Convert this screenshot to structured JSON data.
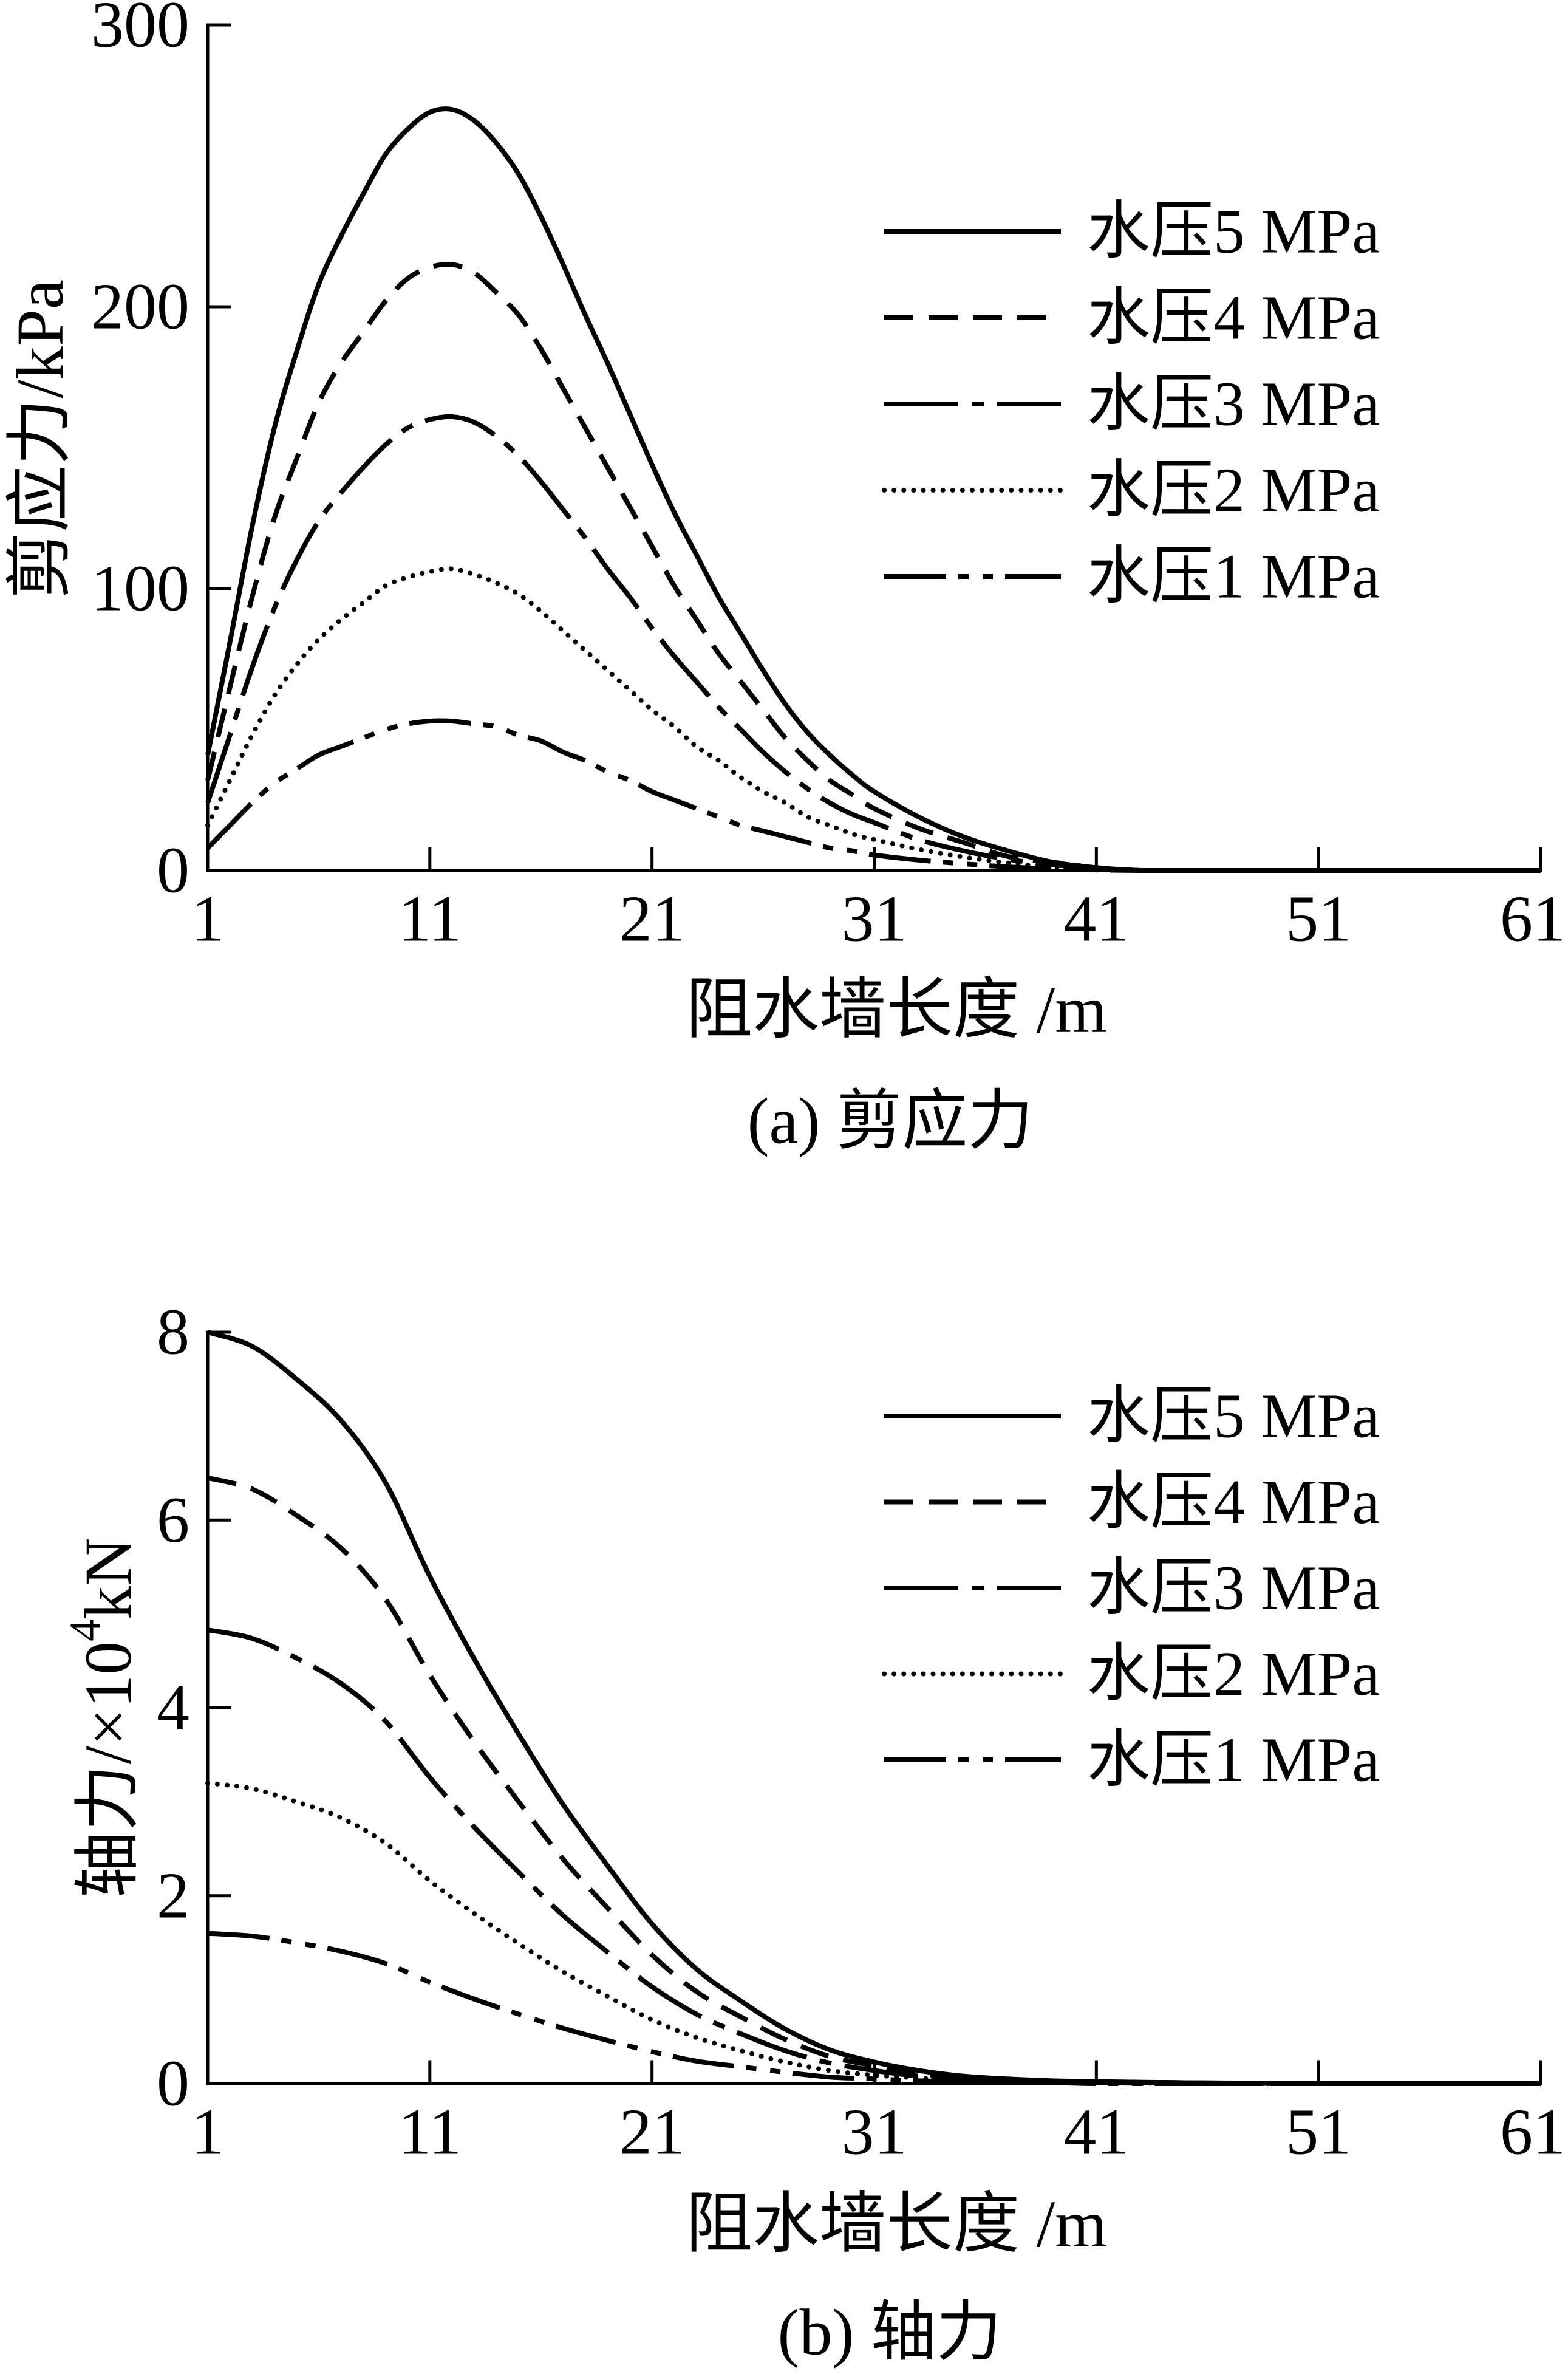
{
  "chart_data": [
    {
      "type": "line",
      "title": "(a) 剪应力",
      "xlabel": "阻水墙长度 /m",
      "ylabel": "剪应力/kPa",
      "xlim": [
        1,
        61
      ],
      "ylim": [
        0,
        300
      ],
      "x_ticks": [
        1,
        11,
        21,
        31,
        41,
        51,
        61
      ],
      "y_ticks": [
        0,
        100,
        200,
        300
      ],
      "grid": false,
      "legend": "top-right",
      "line_color": "#000000",
      "x": [
        1,
        2,
        3,
        4,
        5,
        6,
        7,
        8,
        9,
        10,
        11,
        12,
        13,
        14,
        15,
        16,
        17,
        18,
        19,
        20,
        21,
        22,
        23,
        24,
        25,
        26,
        27,
        28,
        29,
        30,
        31,
        33,
        35,
        37,
        39,
        41,
        43,
        45,
        51,
        61
      ],
      "series": [
        {
          "name": "水压5 MPa",
          "style": "solid",
          "values": [
            41,
            81,
            122,
            157,
            184,
            208,
            225,
            240,
            254,
            263,
            269,
            270,
            266,
            258,
            247,
            232,
            215,
            197,
            180,
            162,
            144,
            127,
            112,
            97,
            84,
            71,
            59,
            49,
            41,
            34,
            28,
            19,
            12,
            7,
            3,
            1,
            0,
            0,
            0,
            0
          ]
        },
        {
          "name": "水压4 MPa",
          "style": "dashed",
          "values": [
            32,
            65,
            97,
            125,
            146,
            166,
            180,
            191,
            202,
            210,
            214,
            215,
            212,
            205,
            197,
            185,
            171,
            157,
            143,
            129,
            115,
            101,
            89,
            77,
            67,
            57,
            47,
            39,
            32,
            27,
            22,
            15,
            10,
            5,
            3,
            1,
            0,
            0,
            0,
            0
          ]
        },
        {
          "name": "水压3 MPa",
          "style": "dashdot",
          "values": [
            24,
            48,
            72,
            93,
            110,
            124,
            134,
            143,
            151,
            157,
            160,
            161,
            159,
            154,
            147,
            138,
            128,
            118,
            107,
            97,
            86,
            76,
            67,
            58,
            50,
            42,
            35,
            29,
            24,
            20,
            17,
            11,
            7,
            4,
            2,
            1,
            0,
            0,
            0,
            0
          ]
        },
        {
          "name": "水压2 MPa",
          "style": "dotted",
          "values": [
            16,
            32,
            48,
            62,
            73,
            82,
            89,
            95,
            101,
            104,
            106,
            107,
            105,
            102,
            98,
            92,
            85,
            78,
            71,
            64,
            57,
            51,
            44,
            39,
            33,
            28,
            24,
            19,
            16,
            13,
            11,
            7.5,
            4.8,
            2.7,
            1.3,
            0.4,
            0,
            0,
            0,
            0
          ]
        },
        {
          "name": "水压1 MPa",
          "style": "dashdotdot",
          "values": [
            8,
            16,
            24,
            31,
            36,
            41,
            44,
            47,
            50,
            52,
            53,
            53,
            52,
            51,
            48,
            46,
            42,
            39,
            35,
            32,
            28,
            25,
            22,
            19,
            16,
            14,
            12,
            10,
            8,
            7,
            5.5,
            3.7,
            2.4,
            1.3,
            0.6,
            0.2,
            0,
            0,
            0,
            0
          ]
        }
      ]
    },
    {
      "type": "line",
      "title": "(b) 轴力",
      "xlabel": "阻水墙长度 /m",
      "ylabel": "轴力/×10⁴kN",
      "xlim": [
        1,
        61
      ],
      "ylim": [
        0,
        8
      ],
      "x_ticks": [
        1,
        11,
        21,
        31,
        41,
        51,
        61
      ],
      "y_ticks": [
        0,
        2,
        4,
        6,
        8
      ],
      "grid": false,
      "legend": "top-right",
      "line_color": "#000000",
      "x": [
        1,
        3,
        5,
        7,
        9,
        11,
        13,
        15,
        17,
        19,
        21,
        23,
        25,
        27,
        29,
        31,
        33,
        35,
        37,
        39,
        41,
        45,
        51,
        61
      ],
      "series": [
        {
          "name": "水压5 MPa",
          "style": "solid",
          "values": [
            8.0,
            7.85,
            7.5,
            7.06,
            6.4,
            5.4,
            4.52,
            3.72,
            2.97,
            2.32,
            1.7,
            1.22,
            0.88,
            0.58,
            0.36,
            0.23,
            0.14,
            0.08,
            0.05,
            0.03,
            0.02,
            0.01,
            0,
            0
          ]
        },
        {
          "name": "水压4 MPa",
          "style": "dashed",
          "values": [
            6.45,
            6.33,
            6.05,
            5.7,
            5.16,
            4.35,
            3.64,
            3.0,
            2.39,
            1.87,
            1.37,
            0.98,
            0.71,
            0.47,
            0.29,
            0.19,
            0.11,
            0.06,
            0.04,
            0.03,
            0.02,
            0.01,
            0,
            0
          ]
        },
        {
          "name": "水压3 MPa",
          "style": "dashdot",
          "values": [
            4.83,
            4.74,
            4.53,
            4.26,
            3.86,
            3.26,
            2.73,
            2.25,
            1.79,
            1.4,
            1.03,
            0.74,
            0.53,
            0.35,
            0.22,
            0.14,
            0.08,
            0.05,
            0.03,
            0.02,
            0.01,
            0,
            0,
            0
          ]
        },
        {
          "name": "水压2 MPa",
          "style": "dotted",
          "values": [
            3.2,
            3.14,
            3.0,
            2.83,
            2.56,
            2.16,
            1.81,
            1.49,
            1.19,
            0.93,
            0.68,
            0.49,
            0.35,
            0.23,
            0.14,
            0.09,
            0.06,
            0.03,
            0.02,
            0.01,
            0.01,
            0,
            0,
            0
          ]
        },
        {
          "name": "水压1 MPa",
          "style": "dashdotdot",
          "values": [
            1.6,
            1.57,
            1.5,
            1.41,
            1.28,
            1.08,
            0.9,
            0.74,
            0.59,
            0.46,
            0.34,
            0.24,
            0.18,
            0.12,
            0.07,
            0.05,
            0.03,
            0.02,
            0.01,
            0.01,
            0,
            0,
            0,
            0
          ]
        }
      ]
    }
  ]
}
